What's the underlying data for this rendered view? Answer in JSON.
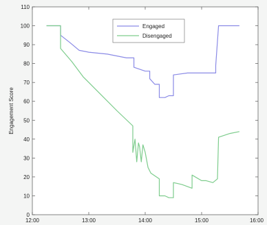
{
  "chart_data": {
    "type": "line",
    "ylabel": "Engagement Score",
    "xlabel": "",
    "x_ticks": [
      "12:00",
      "13:00",
      "14:00",
      "15:00",
      "16:00"
    ],
    "y_ticks": [
      "0",
      "10",
      "20",
      "30",
      "40",
      "50",
      "60",
      "70",
      "80",
      "90",
      "100",
      "110"
    ],
    "xlim": [
      12.0,
      16.0
    ],
    "ylim": [
      0,
      110
    ],
    "legend_position": "top-center",
    "series": [
      {
        "name": "Engaged",
        "color": "#8a8ae6",
        "points": [
          [
            12.25,
            100
          ],
          [
            12.5,
            100
          ],
          [
            12.5,
            95
          ],
          [
            12.67,
            91
          ],
          [
            12.83,
            87
          ],
          [
            13.0,
            86
          ],
          [
            13.33,
            85
          ],
          [
            13.67,
            83
          ],
          [
            13.8,
            83
          ],
          [
            13.8,
            78
          ],
          [
            14.0,
            76
          ],
          [
            14.08,
            76
          ],
          [
            14.08,
            72
          ],
          [
            14.17,
            69
          ],
          [
            14.25,
            69
          ],
          [
            14.25,
            62
          ],
          [
            14.35,
            62
          ],
          [
            14.42,
            63
          ],
          [
            14.5,
            63
          ],
          [
            14.5,
            74
          ],
          [
            14.75,
            75
          ],
          [
            15.0,
            75
          ],
          [
            15.25,
            75
          ],
          [
            15.25,
            79
          ],
          [
            15.3,
            100
          ],
          [
            15.67,
            100
          ]
        ]
      },
      {
        "name": "Disengaged",
        "color": "#7dcc8c",
        "points": [
          [
            12.25,
            100
          ],
          [
            12.5,
            100
          ],
          [
            12.5,
            88
          ],
          [
            12.7,
            81
          ],
          [
            12.9,
            73
          ],
          [
            13.2,
            64
          ],
          [
            13.5,
            55
          ],
          [
            13.78,
            47
          ],
          [
            13.78,
            33
          ],
          [
            13.82,
            40
          ],
          [
            13.85,
            28
          ],
          [
            13.88,
            38
          ],
          [
            13.9,
            36
          ],
          [
            13.93,
            28
          ],
          [
            13.96,
            37
          ],
          [
            14.0,
            33
          ],
          [
            14.05,
            25
          ],
          [
            14.1,
            22
          ],
          [
            14.25,
            19
          ],
          [
            14.25,
            10
          ],
          [
            14.35,
            10
          ],
          [
            14.42,
            9
          ],
          [
            14.5,
            9
          ],
          [
            14.5,
            17
          ],
          [
            14.65,
            16
          ],
          [
            14.83,
            14
          ],
          [
            14.83,
            21
          ],
          [
            15.0,
            18
          ],
          [
            15.08,
            18
          ],
          [
            15.2,
            17
          ],
          [
            15.28,
            19
          ],
          [
            15.3,
            41
          ],
          [
            15.5,
            43
          ],
          [
            15.67,
            44
          ]
        ]
      }
    ]
  }
}
